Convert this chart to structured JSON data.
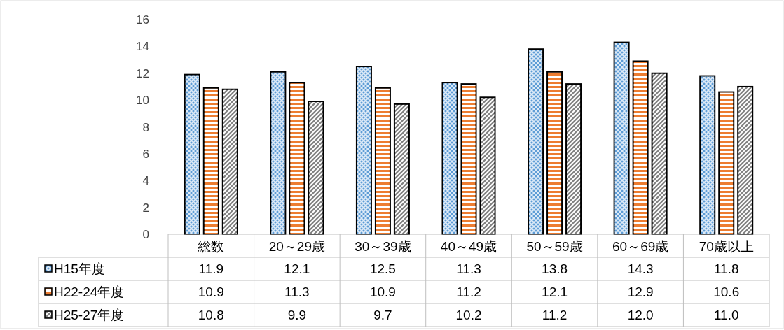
{
  "chart_data": {
    "type": "bar",
    "categories": [
      "総数",
      "20～29歳",
      "30～39歳",
      "40～49歳",
      "50～59歳",
      "60～69歳",
      "70歳以上"
    ],
    "series": [
      {
        "name": "H15年度",
        "color": "#5b9bd5",
        "values": [
          11.9,
          12.1,
          12.5,
          11.3,
          13.8,
          14.3,
          11.8
        ],
        "value_labels": [
          "11.9",
          "12.1",
          "12.5",
          "11.3",
          "13.8",
          "14.3",
          "11.8"
        ]
      },
      {
        "name": "H22-24年度",
        "color": "#ed7d31",
        "values": [
          10.9,
          11.3,
          10.9,
          11.2,
          12.1,
          12.9,
          10.6
        ],
        "value_labels": [
          "10.9",
          "11.3",
          "10.9",
          "11.2",
          "12.1",
          "12.9",
          "10.6"
        ]
      },
      {
        "name": "H25-27年度",
        "color": "#7f7f7f",
        "values": [
          10.8,
          9.9,
          9.7,
          10.2,
          11.2,
          12.0,
          11.0
        ],
        "value_labels": [
          "10.8",
          "9.9",
          "9.7",
          "10.2",
          "11.2",
          "12.0",
          "11.0"
        ]
      }
    ],
    "ylim": [
      0,
      16
    ],
    "yticks": [
      0,
      2,
      4,
      6,
      8,
      10,
      12,
      14,
      16
    ],
    "legend": "left"
  }
}
